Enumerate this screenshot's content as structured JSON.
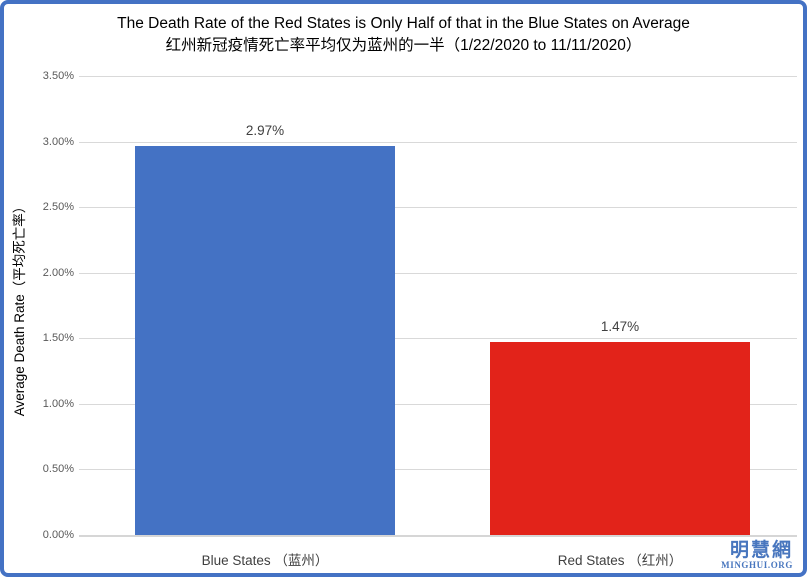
{
  "frame": {
    "border_color": "#4472C4",
    "background": "#FFFFFF"
  },
  "title": {
    "line1": "The Death Rate of the Red States is Only Half of that in the Blue States on Average",
    "line2": "红州新冠疫情死亡率平均仅为蓝州的一半（1/22/2020 to 11/11/2020）"
  },
  "chart_data": {
    "type": "bar",
    "title": "The Death Rate of the Red States is Only Half of that in the Blue States on Average 红州新冠疫情死亡率平均仅为蓝州的一半（1/22/2020 to 11/11/2020）",
    "categories": [
      "Blue States （蓝州）",
      "Red States （红州）"
    ],
    "values": [
      2.97,
      1.47
    ],
    "value_labels": [
      "2.97%",
      "1.47%"
    ],
    "bar_colors": [
      "#4472C4",
      "#E2231A"
    ],
    "xlabel": "",
    "ylabel": "Average Death Rate（平均死亡率）",
    "ylim": [
      0,
      3.5
    ],
    "ytick_labels": [
      "0.00%",
      "0.50%",
      "1.00%",
      "1.50%",
      "2.00%",
      "2.50%",
      "3.00%",
      "3.50%"
    ],
    "grid": true,
    "gridline_color": "#D9D9D9",
    "legend": "none"
  },
  "logo": {
    "chinese": "明慧網",
    "domain": "MINGHUI.ORG",
    "color": "#4876BE"
  }
}
